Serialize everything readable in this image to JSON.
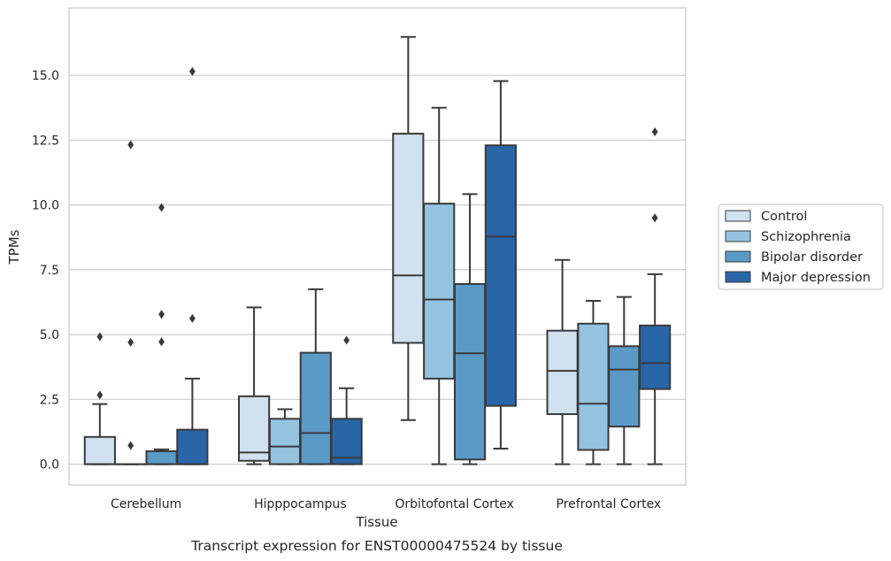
{
  "chart_data": {
    "type": "box",
    "xlabel": "Tissue",
    "ylabel": "TPMs",
    "caption": "Transcript expression for ENST00000475524 by tissue",
    "ylim": [
      -0.8,
      17.6
    ],
    "yticks": [
      0.0,
      2.5,
      5.0,
      7.5,
      10.0,
      12.5,
      15.0
    ],
    "ytick_labels": [
      "0.0",
      "2.5",
      "5.0",
      "7.5",
      "10.0",
      "12.5",
      "15.0"
    ],
    "grid": "horizontal",
    "legend_position": "right",
    "categories": [
      "Cerebellum",
      "Hipppocampus",
      "Orbitofontal Cortex",
      "Prefrontal Cortex"
    ],
    "series": [
      {
        "name": "Control",
        "color": "#d0e1f0",
        "boxes": [
          {
            "whislo": 0.0,
            "q1": 0.0,
            "med": 0.0,
            "q3": 1.05,
            "whishi": 2.32,
            "fliers": [
              2.67,
              4.92
            ]
          },
          {
            "whislo": 0.0,
            "q1": 0.13,
            "med": 0.45,
            "q3": 2.62,
            "whishi": 6.05,
            "fliers": []
          },
          {
            "whislo": 1.7,
            "q1": 4.68,
            "med": 7.28,
            "q3": 12.75,
            "whishi": 16.48,
            "fliers": []
          },
          {
            "whislo": 0.0,
            "q1": 1.93,
            "med": 3.6,
            "q3": 5.15,
            "whishi": 7.88,
            "fliers": []
          }
        ]
      },
      {
        "name": "Schizophrenia",
        "color": "#94c4df",
        "boxes": [
          {
            "whislo": 0.0,
            "q1": 0.0,
            "med": 0.0,
            "q3": 0.0,
            "whishi": 0.0,
            "fliers": [
              0.72,
              4.7,
              12.32
            ]
          },
          {
            "whislo": 0.0,
            "q1": 0.0,
            "med": 0.68,
            "q3": 1.75,
            "whishi": 2.12,
            "fliers": []
          },
          {
            "whislo": 0.0,
            "q1": 3.3,
            "med": 6.35,
            "q3": 10.05,
            "whishi": 13.75,
            "fliers": []
          },
          {
            "whislo": 0.0,
            "q1": 0.55,
            "med": 2.33,
            "q3": 5.42,
            "whishi": 6.3,
            "fliers": []
          }
        ]
      },
      {
        "name": "Bipolar disorder",
        "color": "#5a9ac7",
        "boxes": [
          {
            "whislo": 0.0,
            "q1": 0.0,
            "med": 0.0,
            "q3": 0.5,
            "whishi": 0.57,
            "fliers": [
              4.72,
              5.78,
              9.9
            ]
          },
          {
            "whislo": 0.0,
            "q1": 0.0,
            "med": 1.2,
            "q3": 4.3,
            "whishi": 6.75,
            "fliers": []
          },
          {
            "whislo": 0.0,
            "q1": 0.18,
            "med": 4.28,
            "q3": 6.95,
            "whishi": 10.42,
            "fliers": []
          },
          {
            "whislo": 0.0,
            "q1": 1.45,
            "med": 3.65,
            "q3": 4.55,
            "whishi": 6.45,
            "fliers": []
          }
        ]
      },
      {
        "name": "Major depression",
        "color": "#2866a8",
        "boxes": [
          {
            "whislo": 0.0,
            "q1": 0.0,
            "med": 0.0,
            "q3": 1.33,
            "whishi": 3.3,
            "fliers": [
              5.62,
              15.15
            ]
          },
          {
            "whislo": 0.0,
            "q1": 0.0,
            "med": 0.25,
            "q3": 1.75,
            "whishi": 2.93,
            "fliers": [
              4.78
            ]
          },
          {
            "whislo": 0.6,
            "q1": 2.25,
            "med": 8.78,
            "q3": 12.3,
            "whishi": 14.78,
            "fliers": []
          },
          {
            "whislo": 0.0,
            "q1": 2.9,
            "med": 3.9,
            "q3": 5.35,
            "whishi": 7.33,
            "fliers": [
              9.5,
              12.82
            ]
          }
        ]
      }
    ]
  }
}
